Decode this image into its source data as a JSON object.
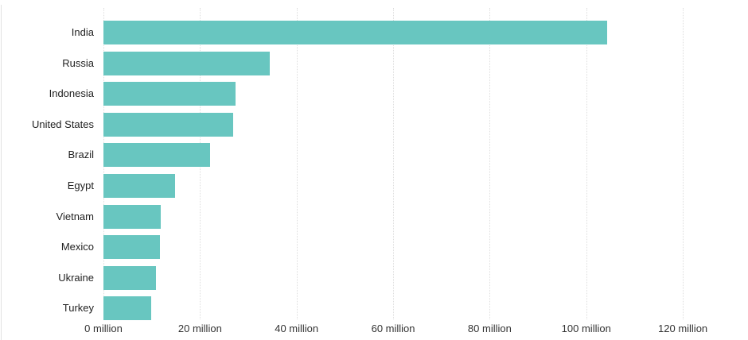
{
  "chart_data": {
    "type": "bar",
    "orientation": "horizontal",
    "title": "",
    "xlabel": "",
    "ylabel": "",
    "unit": "million",
    "categories": [
      "India",
      "Russia",
      "Indonesia",
      "United States",
      "Brazil",
      "Egypt",
      "Vietnam",
      "Mexico",
      "Ukraine",
      "Turkey"
    ],
    "values": [
      104.3,
      34.5,
      27.4,
      26.9,
      22.0,
      14.9,
      11.9,
      11.7,
      10.8,
      9.8
    ],
    "x_ticks": [
      0,
      20,
      40,
      60,
      80,
      100,
      120
    ],
    "x_tick_labels": [
      "0 million",
      "20 million",
      "40 million",
      "60 million",
      "80 million",
      "100 million",
      "120 million"
    ],
    "xlim": [
      0,
      130.5
    ],
    "grid": "vertical-dotted",
    "legend": "none",
    "colors": {
      "bar": "#68C6C0",
      "gridline": "#dedede",
      "category_label": "#222222",
      "tick_label": "#333333",
      "background": "#ffffff",
      "card_border": "#e2e2e2"
    }
  }
}
